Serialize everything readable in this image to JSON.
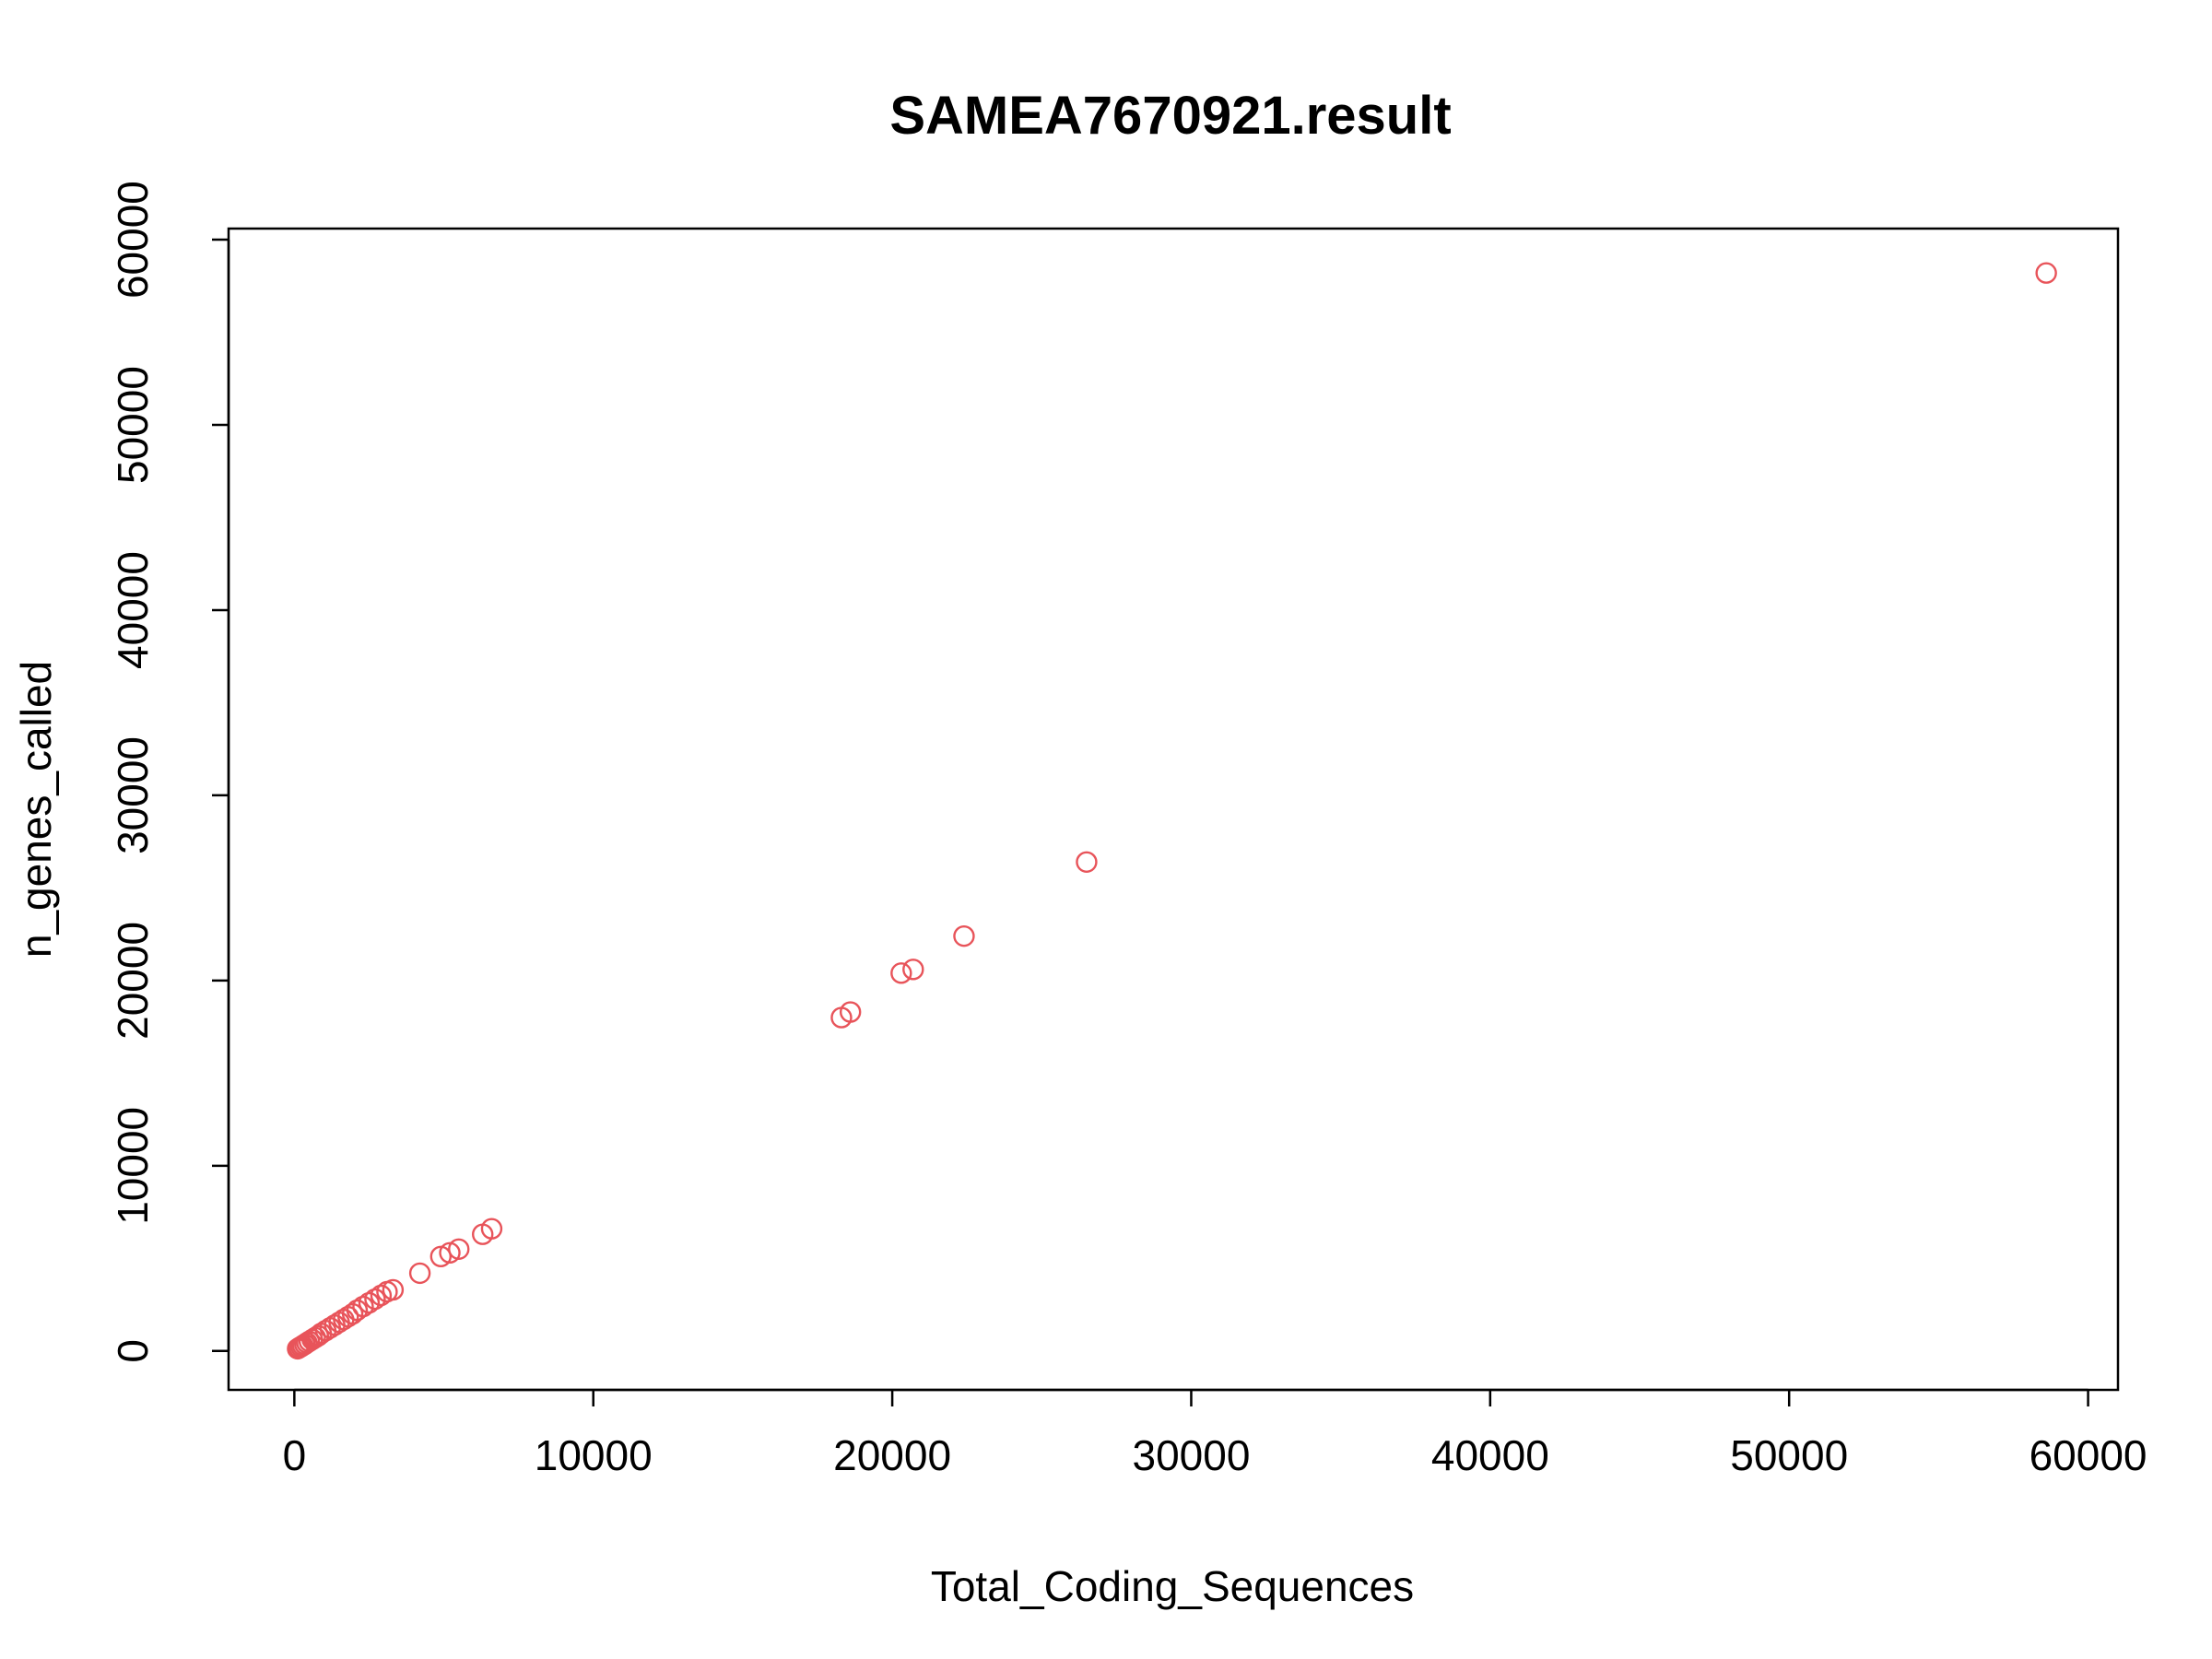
{
  "chart_data": {
    "type": "scatter",
    "title": "SAMEA7670921.result",
    "xlabel": "Total_Coding_Sequences",
    "ylabel": "n_genes_called",
    "xlim": [
      -2200,
      61000
    ],
    "ylim": [
      -2100,
      60600
    ],
    "x_ticks": [
      0,
      10000,
      20000,
      30000,
      40000,
      50000,
      60000
    ],
    "y_ticks": [
      0,
      10000,
      20000,
      30000,
      40000,
      50000,
      60000
    ],
    "x_tick_labels": [
      "0",
      "10000",
      "20000",
      "30000",
      "40000",
      "50000",
      "60000"
    ],
    "y_tick_labels": [
      "0",
      "10000",
      "20000",
      "30000",
      "40000",
      "50000",
      "60000"
    ],
    "grid": false,
    "legend": "none",
    "marker": "open-circle",
    "color": "#E8545A",
    "points": [
      {
        "x": 58600,
        "y": 58200
      },
      {
        "x": 26500,
        "y": 26400
      },
      {
        "x": 22400,
        "y": 22400
      },
      {
        "x": 20700,
        "y": 20600
      },
      {
        "x": 20300,
        "y": 20400
      },
      {
        "x": 18600,
        "y": 18300
      },
      {
        "x": 18300,
        "y": 18000
      },
      {
        "x": 6600,
        "y": 6600
      },
      {
        "x": 6300,
        "y": 6300
      },
      {
        "x": 5500,
        "y": 5500
      },
      {
        "x": 5200,
        "y": 5300
      },
      {
        "x": 4900,
        "y": 5100
      },
      {
        "x": 4200,
        "y": 4200
      },
      {
        "x": 3300,
        "y": 3300
      },
      {
        "x": 3100,
        "y": 3200
      },
      {
        "x": 2900,
        "y": 3000
      },
      {
        "x": 2700,
        "y": 2800
      },
      {
        "x": 2500,
        "y": 2600
      },
      {
        "x": 2300,
        "y": 2400
      },
      {
        "x": 2100,
        "y": 2200
      },
      {
        "x": 1950,
        "y": 2000
      },
      {
        "x": 1800,
        "y": 1850
      },
      {
        "x": 1650,
        "y": 1700
      },
      {
        "x": 1500,
        "y": 1550
      },
      {
        "x": 1350,
        "y": 1400
      },
      {
        "x": 1200,
        "y": 1250
      },
      {
        "x": 1050,
        "y": 1100
      },
      {
        "x": 900,
        "y": 950
      },
      {
        "x": 800,
        "y": 820
      },
      {
        "x": 700,
        "y": 720
      },
      {
        "x": 600,
        "y": 620
      },
      {
        "x": 500,
        "y": 520
      },
      {
        "x": 420,
        "y": 440
      },
      {
        "x": 350,
        "y": 360
      },
      {
        "x": 280,
        "y": 290
      },
      {
        "x": 220,
        "y": 230
      },
      {
        "x": 160,
        "y": 170
      },
      {
        "x": 110,
        "y": 120
      }
    ]
  }
}
